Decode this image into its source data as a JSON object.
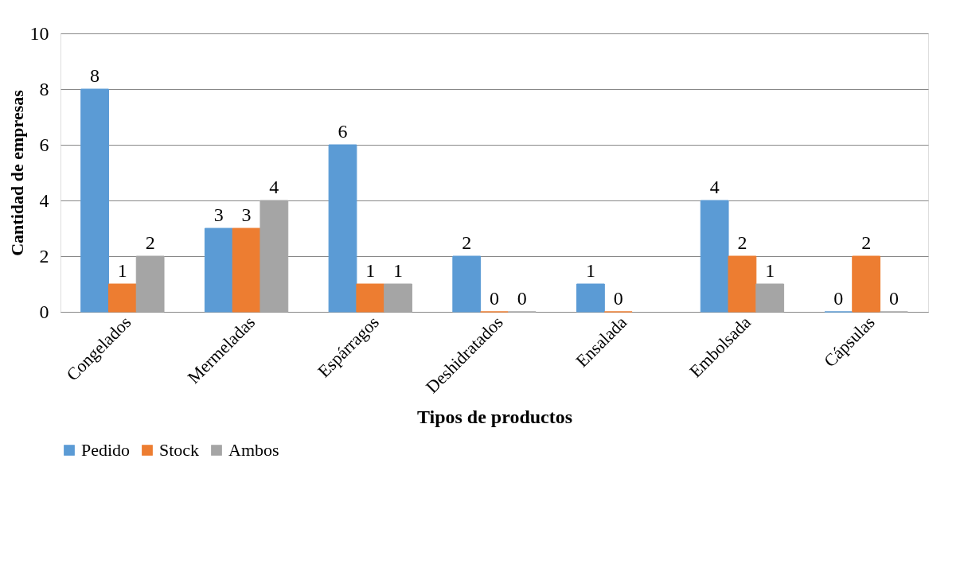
{
  "chart_data": {
    "type": "bar",
    "xlabel": "Tipos de productos",
    "ylabel": "Cantidad de empresas",
    "categories": [
      "Congelados",
      "Mermeladas",
      "Espárragos",
      "Deshidratados",
      "Ensalada",
      "Embolsada",
      "Cápsulas"
    ],
    "series": [
      {
        "name": "Pedido",
        "color": "#5b9bd5",
        "values": [
          8,
          3,
          6,
          2,
          1,
          4,
          0
        ]
      },
      {
        "name": "Stock",
        "color": "#ed7d31",
        "values": [
          1,
          3,
          1,
          0,
          0,
          2,
          2
        ]
      },
      {
        "name": "Ambos",
        "color": "#a5a5a5",
        "values": [
          2,
          4,
          1,
          0,
          null,
          1,
          0
        ]
      }
    ],
    "ylim": [
      0,
      10
    ],
    "yticks": [
      0,
      2,
      4,
      6,
      8,
      10
    ],
    "grid": "y",
    "legend": "bottom",
    "data_labels": true
  }
}
